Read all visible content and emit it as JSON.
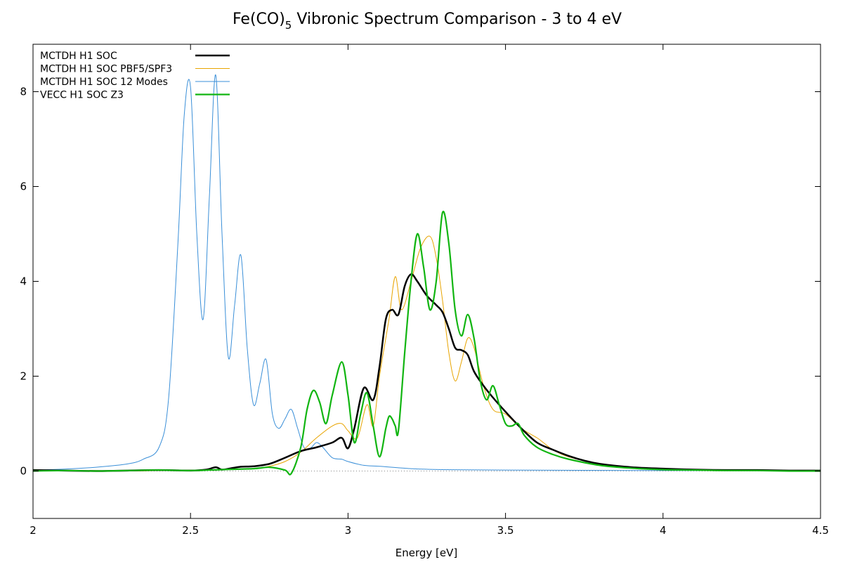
{
  "chart_data": {
    "type": "line",
    "title_main": "Fe(CO)",
    "title_sub": "5",
    "title_rest": " Vibronic Spectrum Comparison - 3 to 4 eV",
    "xlabel": "Energy [eV]",
    "ylabel": "",
    "xlim": [
      2.0,
      4.5
    ],
    "ylim": [
      -1.0,
      9.0
    ],
    "x_ticks": [
      2,
      2.5,
      3,
      3.5,
      4,
      4.5
    ],
    "x_tick_labels": [
      "2",
      "2.5",
      "3",
      "3.5",
      "4",
      "4.5"
    ],
    "y_ticks": [
      0,
      2,
      4,
      6,
      8
    ],
    "y_tick_labels": [
      "0",
      "2",
      "4",
      "6",
      "8"
    ],
    "grid": false,
    "zero_line": true,
    "legend_position": "top-left",
    "series": [
      {
        "name": "MCTDH H1 SOC",
        "color": "#000000",
        "width": 2.5,
        "x": [
          2.0,
          2.1,
          2.2,
          2.3,
          2.4,
          2.5,
          2.55,
          2.58,
          2.6,
          2.63,
          2.66,
          2.7,
          2.75,
          2.8,
          2.85,
          2.9,
          2.95,
          2.98,
          3.0,
          3.02,
          3.05,
          3.08,
          3.1,
          3.12,
          3.14,
          3.16,
          3.18,
          3.2,
          3.22,
          3.25,
          3.28,
          3.3,
          3.32,
          3.34,
          3.36,
          3.38,
          3.4,
          3.43,
          3.46,
          3.5,
          3.55,
          3.6,
          3.65,
          3.7,
          3.75,
          3.8,
          3.9,
          4.0,
          4.1,
          4.2,
          4.3,
          4.4,
          4.5
        ],
        "y": [
          0.02,
          0.01,
          0.0,
          0.01,
          0.02,
          0.01,
          0.03,
          0.08,
          0.03,
          0.06,
          0.09,
          0.1,
          0.15,
          0.28,
          0.42,
          0.5,
          0.6,
          0.7,
          0.48,
          0.9,
          1.75,
          1.5,
          2.2,
          3.2,
          3.4,
          3.3,
          3.9,
          4.15,
          4.0,
          3.7,
          3.5,
          3.35,
          3.0,
          2.6,
          2.55,
          2.45,
          2.1,
          1.8,
          1.55,
          1.25,
          0.9,
          0.6,
          0.45,
          0.32,
          0.22,
          0.15,
          0.08,
          0.05,
          0.03,
          0.02,
          0.02,
          0.01,
          0.01
        ]
      },
      {
        "name": "MCTDH H1 SOC PBF5/SPF3",
        "color": "#e8a400",
        "width": 1.0,
        "x": [
          2.0,
          2.1,
          2.2,
          2.3,
          2.4,
          2.5,
          2.6,
          2.7,
          2.75,
          2.8,
          2.85,
          2.9,
          2.95,
          2.98,
          3.0,
          3.03,
          3.06,
          3.08,
          3.1,
          3.13,
          3.15,
          3.17,
          3.2,
          3.23,
          3.26,
          3.28,
          3.3,
          3.32,
          3.34,
          3.36,
          3.38,
          3.4,
          3.43,
          3.46,
          3.5,
          3.55,
          3.6,
          3.62,
          3.65,
          3.7,
          3.8,
          3.9,
          4.0,
          4.1,
          4.2,
          4.3,
          4.4,
          4.5
        ],
        "y": [
          0.01,
          0.0,
          0.01,
          0.0,
          0.01,
          0.02,
          0.03,
          0.05,
          0.1,
          0.2,
          0.4,
          0.7,
          0.95,
          1.0,
          0.85,
          0.7,
          1.4,
          0.95,
          2.0,
          3.2,
          4.1,
          3.4,
          4.0,
          4.7,
          4.95,
          4.5,
          3.6,
          2.5,
          1.9,
          2.3,
          2.8,
          2.6,
          1.8,
          1.3,
          1.2,
          0.9,
          0.7,
          0.6,
          0.45,
          0.3,
          0.15,
          0.08,
          0.04,
          0.03,
          0.02,
          0.01,
          0.01,
          0.0
        ]
      },
      {
        "name": "MCTDH H1 SOC 12 Modes",
        "color": "#3a8fd8",
        "width": 1.0,
        "x": [
          2.0,
          2.1,
          2.2,
          2.3,
          2.35,
          2.4,
          2.43,
          2.46,
          2.48,
          2.5,
          2.52,
          2.54,
          2.56,
          2.58,
          2.6,
          2.62,
          2.64,
          2.66,
          2.68,
          2.7,
          2.72,
          2.74,
          2.76,
          2.78,
          2.8,
          2.82,
          2.84,
          2.86,
          2.88,
          2.9,
          2.92,
          2.95,
          2.98,
          3.0,
          3.05,
          3.1,
          3.2,
          3.3,
          3.5,
          4.0,
          4.5
        ],
        "y": [
          0.02,
          0.04,
          0.08,
          0.15,
          0.25,
          0.5,
          1.5,
          4.8,
          7.5,
          8.1,
          5.0,
          3.2,
          5.8,
          8.35,
          5.0,
          2.4,
          3.5,
          4.55,
          2.6,
          1.4,
          1.85,
          2.35,
          1.2,
          0.9,
          1.1,
          1.3,
          0.9,
          0.5,
          0.48,
          0.6,
          0.5,
          0.28,
          0.25,
          0.2,
          0.12,
          0.1,
          0.05,
          0.03,
          0.02,
          0.01,
          0.01
        ]
      },
      {
        "name": "VECC    H1 SOC Z3",
        "color": "#11b511",
        "width": 2.2,
        "x": [
          2.0,
          2.1,
          2.2,
          2.3,
          2.4,
          2.5,
          2.6,
          2.7,
          2.75,
          2.8,
          2.82,
          2.85,
          2.87,
          2.89,
          2.91,
          2.93,
          2.95,
          2.98,
          3.0,
          3.02,
          3.04,
          3.06,
          3.08,
          3.1,
          3.12,
          3.13,
          3.14,
          3.15,
          3.16,
          3.18,
          3.2,
          3.22,
          3.24,
          3.26,
          3.28,
          3.3,
          3.32,
          3.34,
          3.36,
          3.38,
          3.4,
          3.42,
          3.44,
          3.46,
          3.48,
          3.5,
          3.52,
          3.54,
          3.56,
          3.6,
          3.65,
          3.7,
          3.8,
          3.9,
          4.0,
          4.1,
          4.2,
          4.3,
          4.4,
          4.5
        ],
        "y": [
          0.0,
          0.01,
          0.0,
          0.01,
          0.02,
          0.01,
          0.03,
          0.05,
          0.08,
          0.02,
          -0.05,
          0.5,
          1.3,
          1.7,
          1.45,
          1.0,
          1.6,
          2.3,
          1.6,
          0.6,
          1.2,
          1.65,
          0.95,
          0.3,
          0.9,
          1.15,
          1.1,
          0.95,
          0.85,
          2.5,
          4.0,
          5.0,
          4.3,
          3.4,
          4.0,
          5.45,
          4.8,
          3.4,
          2.85,
          3.3,
          2.8,
          1.9,
          1.5,
          1.8,
          1.4,
          1.0,
          0.95,
          1.0,
          0.75,
          0.5,
          0.35,
          0.25,
          0.12,
          0.06,
          0.03,
          0.02,
          0.01,
          0.01,
          0.0,
          0.0
        ]
      }
    ]
  }
}
